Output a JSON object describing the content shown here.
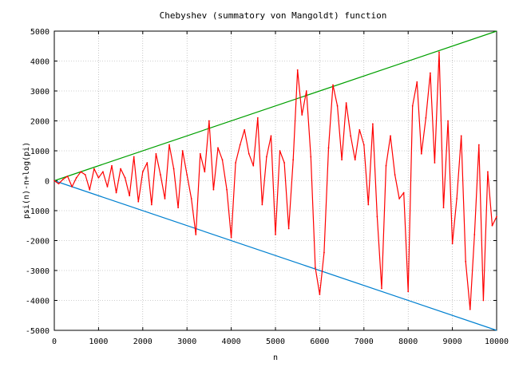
{
  "chart_data": {
    "type": "line",
    "title": "Chebyshev (summatory von Mangoldt) function",
    "xlabel": "n",
    "ylabel": "psi(n)-n+log(pi)",
    "xlim": [
      0,
      10000
    ],
    "ylim": [
      -5000,
      5000
    ],
    "x_ticks": [
      "0",
      "1000",
      "2000",
      "3000",
      "4000",
      "5000",
      "6000",
      "7000",
      "8000",
      "9000",
      "10000"
    ],
    "y_ticks": [
      "5000",
      "4000",
      "3000",
      "2000",
      "1000",
      "0",
      "-1000",
      "-2000",
      "-3000",
      "-4000",
      "-5000"
    ],
    "grid": true,
    "legend": "none",
    "colors": {
      "series": "#ff0000",
      "upper_bound": "#00a000",
      "lower_bound": "#0080d0",
      "grid": "#a0a0a0"
    },
    "series": [
      {
        "x": [
          0,
          100,
          200,
          300,
          400,
          500,
          600,
          700,
          800,
          900,
          1000,
          1100,
          1200,
          1300,
          1400,
          1500,
          1600,
          1700,
          1800,
          1900,
          2000,
          2100,
          2200,
          2300,
          2400,
          2500,
          2600,
          2700,
          2800,
          2900,
          3000,
          3100,
          3200,
          3300,
          3400,
          3500,
          3600,
          3700,
          3800,
          3900,
          4000,
          4100,
          4200,
          4300,
          4400,
          4500,
          4600,
          4700,
          4800,
          4900,
          5000,
          5100,
          5200,
          5300,
          5400,
          5500,
          5600,
          5700,
          5800,
          5900,
          6000,
          6100,
          6200,
          6300,
          6400,
          6500,
          6600,
          6700,
          6800,
          6900,
          7000,
          7100,
          7200,
          7300,
          7400,
          7500,
          7600,
          7700,
          7800,
          7900,
          8000,
          8100,
          8200,
          8300,
          8400,
          8500,
          8600,
          8700,
          8800,
          8900,
          9000,
          9100,
          9200,
          9300,
          9400,
          9500,
          9600,
          9700,
          9800,
          9900,
          10000
        ],
        "y": [
          0,
          -100,
          50,
          150,
          -200,
          100,
          300,
          200,
          -300,
          400,
          100,
          300,
          -200,
          500,
          -400,
          400,
          100,
          -500,
          800,
          -700,
          300,
          600,
          -800,
          900,
          200,
          -600,
          1200,
          400,
          -900,
          1000,
          200,
          -600,
          -1800,
          900,
          300,
          2000,
          -300,
          1100,
          700,
          -300,
          -1900,
          600,
          1200,
          1700,
          900,
          500,
          2100,
          -800,
          800,
          1500,
          -1800,
          1000,
          600,
          -1600,
          700,
          3700,
          2200,
          3000,
          800,
          -2900,
          -3800,
          -2400,
          1100,
          3200,
          2500,
          700,
          2600,
          1500,
          700,
          1700,
          1200,
          -800,
          1900,
          -1200,
          -3600,
          500,
          1500,
          200,
          -600,
          -400,
          -3700,
          2500,
          3300,
          900,
          2100,
          3600,
          600,
          4300,
          -900,
          2000,
          -2100,
          -600,
          1500,
          -2700,
          -4300,
          -1800,
          1200,
          -4000,
          300,
          -1500,
          -1200
        ]
      }
    ]
  }
}
